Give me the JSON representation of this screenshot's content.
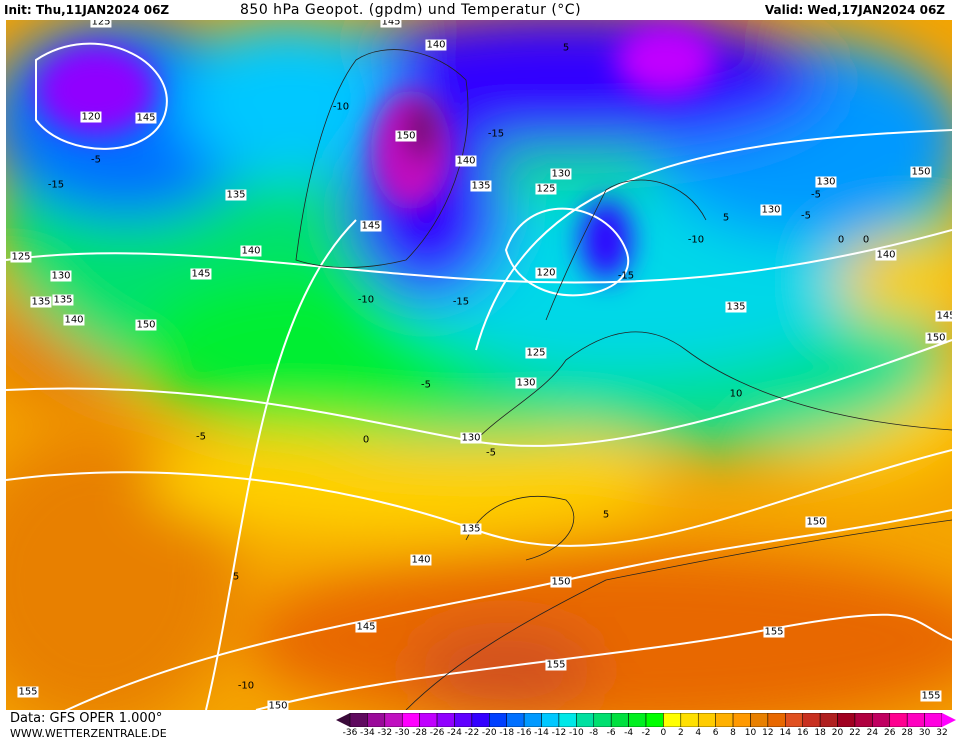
{
  "header": {
    "init": "Init: Thu,11JAN2024 06Z",
    "title": "850 hPa Geopot. (gpdm) und Temperatur (°C)",
    "valid": "Valid: Wed,17JAN2024 06Z"
  },
  "footer": {
    "data_source": "Data: GFS OPER 1.000°",
    "website": "WWW.WETTERZENTRALE.DE"
  },
  "colorbar": {
    "ticks": [
      "-36",
      "-34",
      "-32",
      "-30",
      "-28",
      "-26",
      "-24",
      "-22",
      "-20",
      "-18",
      "-16",
      "-14",
      "-12",
      "-10",
      "-8",
      "-6",
      "-4",
      "-2",
      "0",
      "2",
      "4",
      "6",
      "8",
      "10",
      "12",
      "14",
      "16",
      "18",
      "20",
      "22",
      "24",
      "26",
      "28",
      "30",
      "32"
    ],
    "colors": [
      "#3a0a3a",
      "#5f0a5f",
      "#9a0a9a",
      "#c010c0",
      "#ff00ff",
      "#c000ff",
      "#9000ff",
      "#6000ff",
      "#3300ff",
      "#0040ff",
      "#0070ff",
      "#0099ff",
      "#00c8ff",
      "#00e8e8",
      "#00e0a0",
      "#00e070",
      "#00e040",
      "#00f020",
      "#00ff00",
      "#ffff00",
      "#ffe000",
      "#ffcc00",
      "#ffb000",
      "#ff9900",
      "#e88000",
      "#e86800",
      "#e05020",
      "#c83020",
      "#b02020",
      "#a00020",
      "#b00040",
      "#c00060",
      "#ff0090",
      "#ff00c0",
      "#ff00e0",
      "#ff00ff"
    ]
  },
  "geopotential_labels": [
    "125",
    "120",
    "145",
    "135",
    "135",
    "140",
    "145",
    "150",
    "150",
    "145",
    "140",
    "135",
    "130",
    "125",
    "120",
    "130",
    "125",
    "130",
    "135",
    "130",
    "140",
    "150",
    "125",
    "130",
    "135",
    "140",
    "145",
    "150",
    "130",
    "135",
    "140",
    "145",
    "150",
    "155",
    "155",
    "155",
    "155",
    "150",
    "145",
    "150",
    "140"
  ],
  "temperature_labels": [
    "-10",
    "-15",
    "-15",
    "-10",
    "-5",
    "0",
    "-5",
    "-5",
    "0",
    "5",
    "-5",
    "5",
    "10",
    "-15",
    "-10",
    "-5",
    "0",
    "-5",
    "5",
    "-15",
    "-10",
    "5"
  ]
}
